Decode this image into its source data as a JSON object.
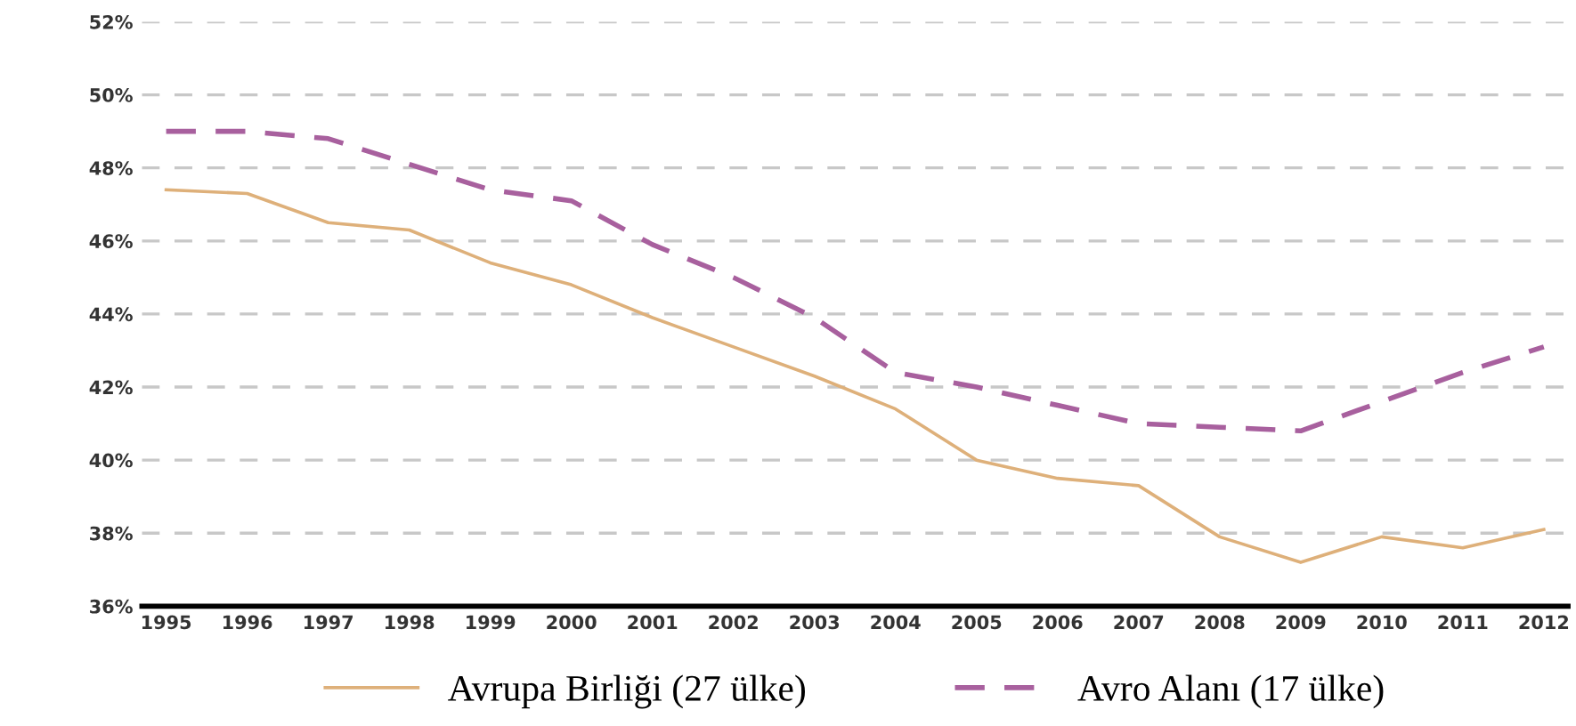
{
  "chart_data": {
    "type": "line",
    "categories": [
      "1995",
      "1996",
      "1997",
      "1998",
      "1999",
      "2000",
      "2001",
      "2002",
      "2003",
      "2004",
      "2005",
      "2006",
      "2007",
      "2008",
      "2009",
      "2010",
      "2011",
      "2012"
    ],
    "series": [
      {
        "name": "Avrupa Birliği (27 ülke)",
        "color": "#deb07a",
        "line_style": "solid",
        "values": [
          47.4,
          47.3,
          46.5,
          46.3,
          45.4,
          44.8,
          43.9,
          43.1,
          42.3,
          41.4,
          40.0,
          39.5,
          39.3,
          37.9,
          37.2,
          37.9,
          37.6,
          38.1
        ]
      },
      {
        "name": "Avro Alanı (17 ülke)",
        "color": "#a8609e",
        "line_style": "dashed",
        "values": [
          49.0,
          49.0,
          48.8,
          48.1,
          47.4,
          47.1,
          45.9,
          45.0,
          43.9,
          42.4,
          42.0,
          41.5,
          41.0,
          40.9,
          40.8,
          41.6,
          42.4,
          43.1
        ]
      }
    ],
    "ylim": [
      36,
      52
    ],
    "yticks": [
      {
        "value": 36,
        "label": "36%"
      },
      {
        "value": 38,
        "label": "38%"
      },
      {
        "value": 40,
        "label": "40%"
      },
      {
        "value": 42,
        "label": "42%"
      },
      {
        "value": 44,
        "label": "44%"
      },
      {
        "value": 46,
        "label": "46%"
      },
      {
        "value": 48,
        "label": "48%"
      },
      {
        "value": 50,
        "label": "50%"
      },
      {
        "value": 52,
        "label": "52%"
      }
    ],
    "grid": "y",
    "legend": "bottom",
    "marker": "none"
  }
}
